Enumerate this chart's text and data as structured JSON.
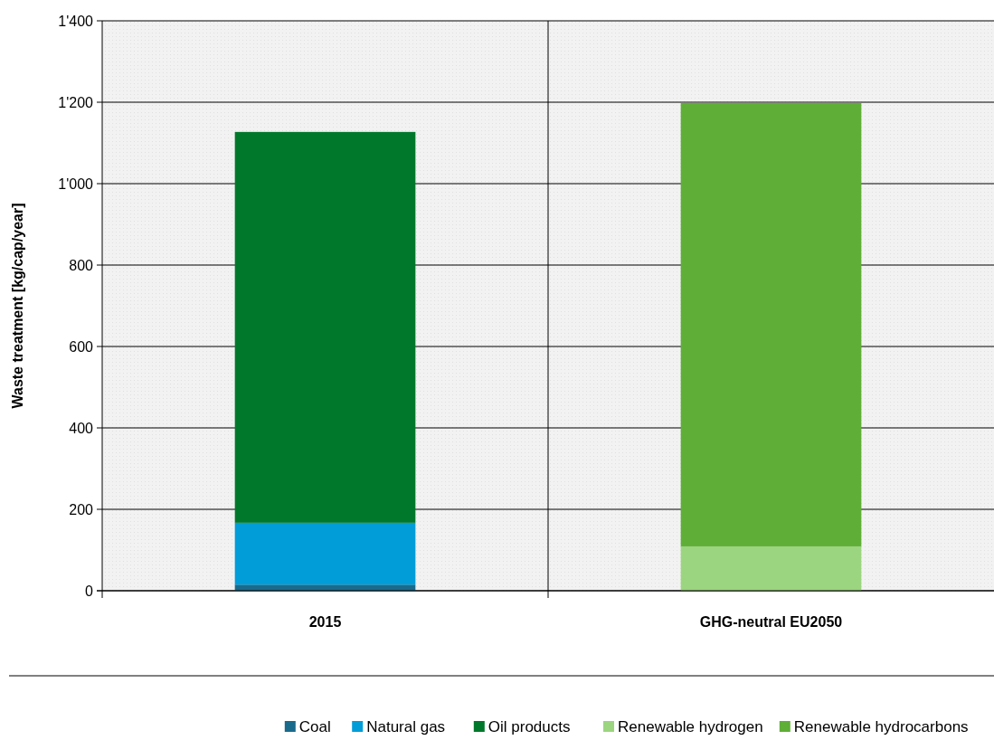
{
  "chart_data": {
    "type": "bar",
    "stacked": true,
    "ylabel": "Waste treatment [kg/cap/year]",
    "categories": [
      "2015",
      "GHG-neutral EU2050"
    ],
    "series": [
      {
        "name": "Coal",
        "color": "#1a6a8c",
        "values": [
          15,
          0
        ]
      },
      {
        "name": "Natural gas",
        "color": "#009dd9",
        "values": [
          152,
          0
        ]
      },
      {
        "name": "Oil products",
        "color": "#00782b",
        "values": [
          960,
          0
        ]
      },
      {
        "name": "Renewable hydrogen",
        "color": "#9bd57f",
        "values": [
          0,
          109
        ]
      },
      {
        "name": "Renewable hydrocarbons",
        "color": "#5fae37",
        "values": [
          0,
          1089
        ]
      }
    ],
    "ylim": [
      0,
      1400
    ],
    "yticks": [
      {
        "value": 0,
        "label": "0"
      },
      {
        "value": 200,
        "label": "200"
      },
      {
        "value": 400,
        "label": "400"
      },
      {
        "value": 600,
        "label": "600"
      },
      {
        "value": 800,
        "label": "800"
      },
      {
        "value": 1000,
        "label": "1'000"
      },
      {
        "value": 1200,
        "label": "1'200"
      },
      {
        "value": 1400,
        "label": "1'400"
      }
    ],
    "grid": true,
    "legend": "bottom"
  }
}
